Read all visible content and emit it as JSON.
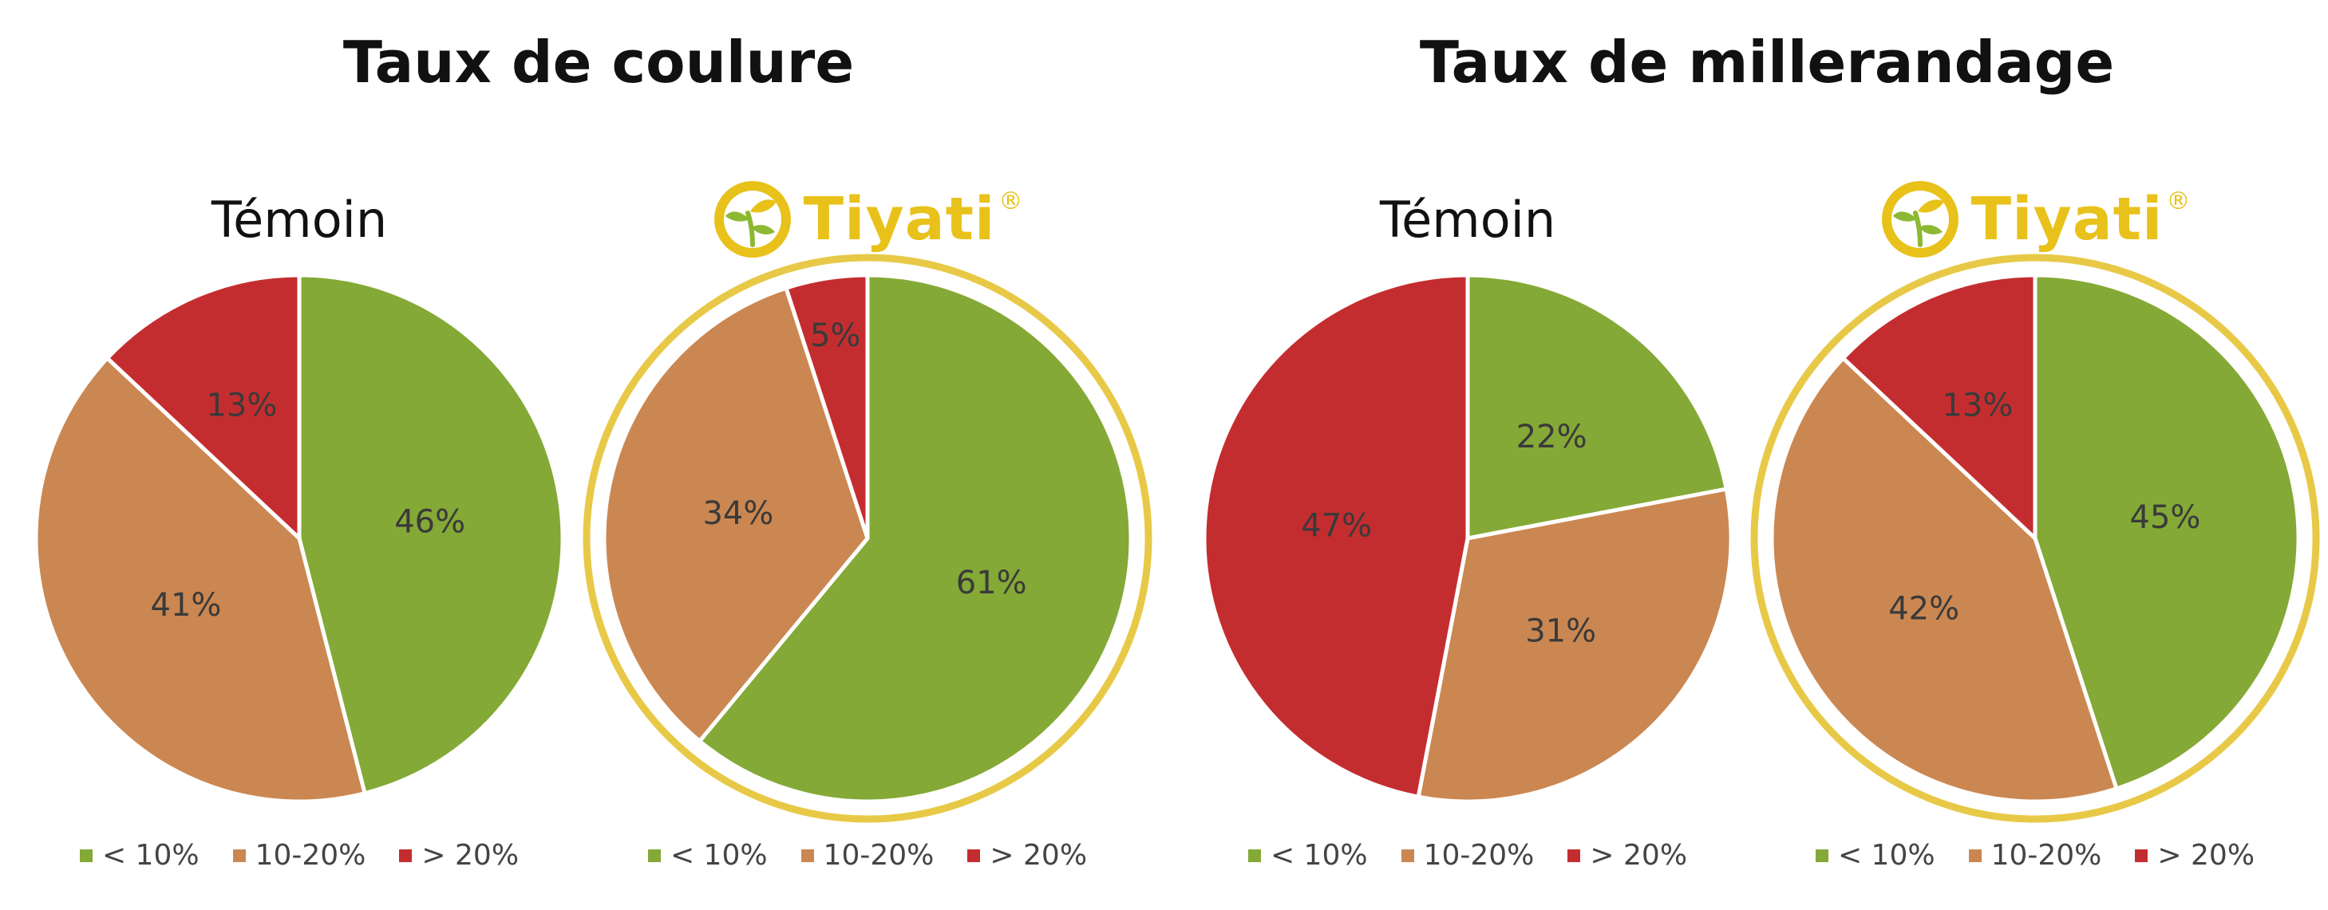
{
  "titles": {
    "left": "Taux de coulure",
    "right": "Taux de millerandage"
  },
  "colors": {
    "lt10": "#84A936",
    "mid": "#CB8751",
    "gt20": "#C42D2F",
    "ring": "#E8C947"
  },
  "chart_data": [
    {
      "type": "pie",
      "group": "Taux de coulure",
      "header": "Témoin",
      "categories": [
        "< 10%",
        "10-20%",
        "> 20%"
      ],
      "values": [
        46,
        41,
        13
      ],
      "labels": [
        "46%",
        "41%",
        "13%"
      ],
      "legend": "bottom"
    },
    {
      "type": "pie",
      "group": "Taux de coulure",
      "header": "Tiyati",
      "categories": [
        "< 10%",
        "10-20%",
        "> 20%"
      ],
      "values": [
        61,
        34,
        5
      ],
      "labels": [
        "61%",
        "34%",
        "5%"
      ],
      "legend": "bottom"
    },
    {
      "type": "pie",
      "group": "Taux de millerandage",
      "header": "Témoin",
      "categories": [
        "< 10%",
        "10-20%",
        "> 20%"
      ],
      "values": [
        22,
        31,
        47
      ],
      "labels": [
        "22%",
        "31%",
        "47%"
      ],
      "legend": "bottom"
    },
    {
      "type": "pie",
      "group": "Taux de millerandage",
      "header": "Tiyati",
      "categories": [
        "< 10%",
        "10-20%",
        "> 20%"
      ],
      "values": [
        45,
        42,
        13
      ],
      "labels": [
        "45%",
        "42%",
        "13%"
      ],
      "legend": "bottom"
    }
  ],
  "brand": {
    "name": "Tiyati",
    "registered": "®",
    "icon": "leaf-logo-icon"
  }
}
